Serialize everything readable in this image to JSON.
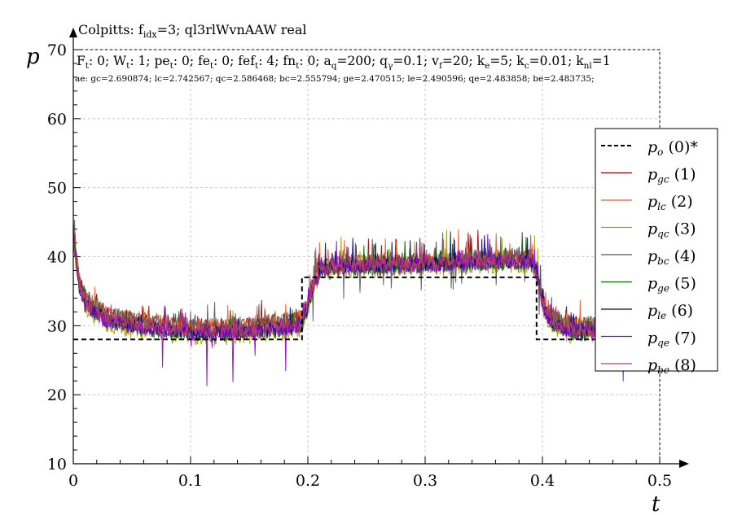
{
  "chart_data": {
    "type": "line",
    "title_line1": {
      "pre": "Colpitts: f",
      "sub": "idx",
      "post": "=3; ql3rlWvnAAW real"
    },
    "params_line": [
      {
        "t": "F"
      },
      {
        "t": "t",
        "sub": true
      },
      {
        "t": ": 0; W"
      },
      {
        "t": "t",
        "sub": true
      },
      {
        "t": ": 1; pe"
      },
      {
        "t": "t",
        "sub": true
      },
      {
        "t": ": 0; fe"
      },
      {
        "t": "t",
        "sub": true
      },
      {
        "t": ": 0; fef"
      },
      {
        "t": "t",
        "sub": true
      },
      {
        "t": ": 4; fn"
      },
      {
        "t": "t",
        "sub": true
      },
      {
        "t": ": 0; a"
      },
      {
        "t": "q",
        "sub": true
      },
      {
        "t": "=200; q"
      },
      {
        "t": "γ",
        "sub": true
      },
      {
        "t": "=0.1; v"
      },
      {
        "t": "f",
        "sub": true
      },
      {
        "t": "=20; k"
      },
      {
        "t": "e",
        "sub": true
      },
      {
        "t": "=5; k"
      },
      {
        "t": "c",
        "sub": true
      },
      {
        "t": "=0.01; k"
      },
      {
        "t": "nl",
        "sub": true
      },
      {
        "t": "=1"
      }
    ],
    "ae_line": "ae: gc=2.690874; lc=2.742567; qc=2.586468; bc=2.555794; ge=2.470515; le=2.490596; qe=2.483858; be=2.483735;",
    "xlabel": "t",
    "ylabel": "p",
    "xlim": [
      0,
      0.5
    ],
    "ylim": [
      10,
      70
    ],
    "x_ticks": [
      0,
      0.1,
      0.2,
      0.3,
      0.4,
      0.5
    ],
    "x_tick_labels": [
      "0",
      "0.1",
      "0.2",
      "0.3",
      "0.4",
      "0.5"
    ],
    "y_ticks": [
      10,
      20,
      30,
      40,
      50,
      60,
      70
    ],
    "y_tick_labels": [
      "10",
      "20",
      "30",
      "40",
      "50",
      "60",
      "70"
    ],
    "grid": true,
    "legend_position": "right",
    "reference": {
      "x": [
        0,
        0.195,
        0.195,
        0.395,
        0.395,
        0.45
      ],
      "values": [
        28,
        28,
        37,
        37,
        28,
        28
      ]
    },
    "series": [
      {
        "name": "po",
        "sym": "p",
        "sub": "o",
        "idx": "(0)*",
        "color": "#000000",
        "dash": true
      },
      {
        "name": "pgc",
        "sym": "p",
        "sub": "gc",
        "idx": "(1)",
        "color": "#8b0000"
      },
      {
        "name": "plc",
        "sym": "p",
        "sub": "lc",
        "idx": "(2)",
        "color": "#e8602c"
      },
      {
        "name": "pqc",
        "sym": "p",
        "sub": "qc",
        "idx": "(3)",
        "color": "#a0a000"
      },
      {
        "name": "pbc",
        "sym": "p",
        "sub": "bc",
        "idx": "(4)",
        "color": "#555555"
      },
      {
        "name": "pge",
        "sym": "p",
        "sub": "ge",
        "idx": "(5)",
        "color": "#006400"
      },
      {
        "name": "ple",
        "sym": "p",
        "sub": "le",
        "idx": "(6)",
        "color": "#00008b"
      },
      {
        "name": "pqe",
        "sym": "p",
        "sub": "qe",
        "idx": "(7)",
        "color": "#9400d3"
      },
      {
        "name": "pbe",
        "sym": "p",
        "sub": "be",
        "idx": "(8)",
        "color": "#c04060"
      }
    ],
    "approx_traces": {
      "x": [
        0,
        0.005,
        0.01,
        0.02,
        0.03,
        0.05,
        0.08,
        0.1,
        0.12,
        0.15,
        0.18,
        0.195,
        0.2,
        0.205,
        0.21,
        0.22,
        0.25,
        0.3,
        0.35,
        0.39,
        0.395,
        0.4,
        0.405,
        0.41,
        0.42,
        0.43,
        0.45,
        0.5
      ],
      "values": [
        43,
        36,
        33.5,
        32,
        31,
        30.2,
        29.6,
        29.3,
        29.2,
        29.4,
        29.9,
        30.5,
        33,
        36,
        38,
        38.5,
        38.8,
        39,
        39.3,
        39.5,
        38,
        33.5,
        31.5,
        30.5,
        29.7,
        29.4,
        29.2,
        29.2
      ],
      "offsets": [
        0.8,
        0.9,
        -0.6,
        0.3,
        -0.5,
        -0.2,
        -0.3,
        0.0
      ],
      "noise_amplitude": [
        1.1,
        1.0,
        1.5,
        1.8,
        1.0,
        1.0,
        1.2,
        1.0
      ],
      "spike_min": 21
    }
  }
}
